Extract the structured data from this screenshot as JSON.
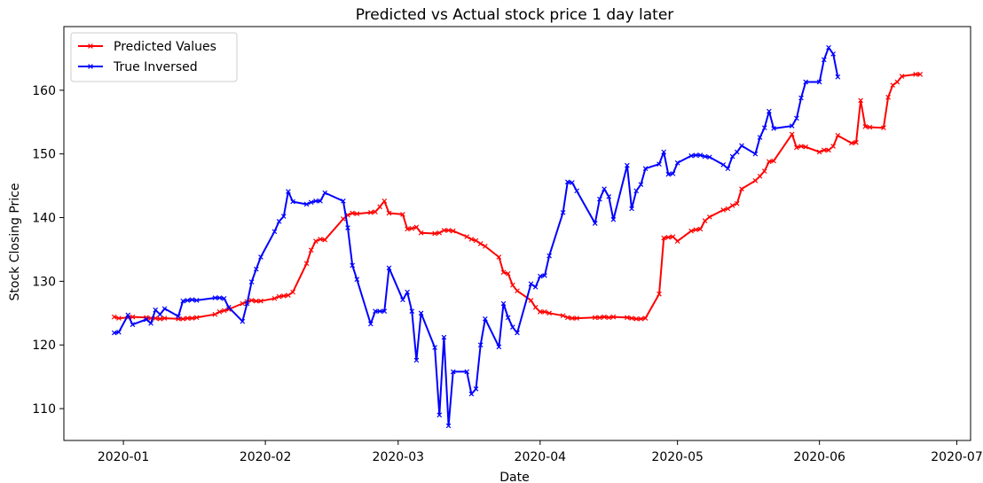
{
  "chart_data": {
    "type": "line",
    "title": "Predicted vs Actual stock price 1 day later",
    "xlabel": "Date",
    "ylabel": "Stock Closing Price",
    "xlim": [
      "2019-12-19",
      "2020-07-04"
    ],
    "ylim": [
      105,
      170
    ],
    "x_ticks": [
      "2020-01",
      "2020-02",
      "2020-03",
      "2020-04",
      "2020-05",
      "2020-06",
      "2020-07"
    ],
    "x_tick_dates": [
      "2020-01-01",
      "2020-02-01",
      "2020-03-01",
      "2020-04-01",
      "2020-05-01",
      "2020-06-01",
      "2020-07-01"
    ],
    "y_ticks": [
      110,
      120,
      130,
      140,
      150,
      160
    ],
    "grid": false,
    "legend_position": "top-left",
    "series": [
      {
        "name": "Predicted Values",
        "color": "#ff0000",
        "marker": "x",
        "points": [
          [
            "2019-12-30",
            124.4
          ],
          [
            "2019-12-31",
            124.2
          ],
          [
            "2020-01-02",
            124.3
          ],
          [
            "2020-01-03",
            124.4
          ],
          [
            "2020-01-06",
            124.3
          ],
          [
            "2020-01-07",
            124.2
          ],
          [
            "2020-01-08",
            124.2
          ],
          [
            "2020-01-09",
            124.1
          ],
          [
            "2020-01-10",
            124.2
          ],
          [
            "2020-01-13",
            124.1
          ],
          [
            "2020-01-14",
            124.1
          ],
          [
            "2020-01-15",
            124.2
          ],
          [
            "2020-01-16",
            124.2
          ],
          [
            "2020-01-17",
            124.3
          ],
          [
            "2020-01-21",
            124.8
          ],
          [
            "2020-01-22",
            125.2
          ],
          [
            "2020-01-23",
            125.4
          ],
          [
            "2020-01-24",
            125.6
          ],
          [
            "2020-01-27",
            126.5
          ],
          [
            "2020-01-28",
            126.8
          ],
          [
            "2020-01-29",
            127.0
          ],
          [
            "2020-01-30",
            126.9
          ],
          [
            "2020-01-31",
            126.9
          ],
          [
            "2020-02-03",
            127.3
          ],
          [
            "2020-02-04",
            127.6
          ],
          [
            "2020-02-05",
            127.7
          ],
          [
            "2020-02-06",
            127.8
          ],
          [
            "2020-02-07",
            128.3
          ],
          [
            "2020-02-10",
            132.8
          ],
          [
            "2020-02-11",
            134.9
          ],
          [
            "2020-02-12",
            136.3
          ],
          [
            "2020-02-13",
            136.6
          ],
          [
            "2020-02-14",
            136.5
          ],
          [
            "2020-02-18",
            139.8
          ],
          [
            "2020-02-19",
            140.4
          ],
          [
            "2020-02-20",
            140.7
          ],
          [
            "2020-02-21",
            140.6
          ],
          [
            "2020-02-24",
            140.8
          ],
          [
            "2020-02-25",
            140.9
          ],
          [
            "2020-02-26",
            141.7
          ],
          [
            "2020-02-27",
            142.6
          ],
          [
            "2020-02-28",
            140.7
          ],
          [
            "2020-03-02",
            140.5
          ],
          [
            "2020-03-03",
            138.2
          ],
          [
            "2020-03-04",
            138.3
          ],
          [
            "2020-03-05",
            138.5
          ],
          [
            "2020-03-06",
            137.6
          ],
          [
            "2020-03-09",
            137.5
          ],
          [
            "2020-03-10",
            137.6
          ],
          [
            "2020-03-11",
            138.0
          ],
          [
            "2020-03-12",
            138.0
          ],
          [
            "2020-03-13",
            137.9
          ],
          [
            "2020-03-16",
            137.0
          ],
          [
            "2020-03-17",
            136.6
          ],
          [
            "2020-03-18",
            136.4
          ],
          [
            "2020-03-19",
            135.9
          ],
          [
            "2020-03-20",
            135.5
          ],
          [
            "2020-03-23",
            133.8
          ],
          [
            "2020-03-24",
            131.4
          ],
          [
            "2020-03-25",
            131.2
          ],
          [
            "2020-03-26",
            129.4
          ],
          [
            "2020-03-27",
            128.5
          ],
          [
            "2020-03-30",
            127.0
          ],
          [
            "2020-03-31",
            125.9
          ],
          [
            "2020-04-01",
            125.2
          ],
          [
            "2020-04-02",
            125.2
          ],
          [
            "2020-04-03",
            125.0
          ],
          [
            "2020-04-06",
            124.6
          ],
          [
            "2020-04-07",
            124.3
          ],
          [
            "2020-04-08",
            124.2
          ],
          [
            "2020-04-09",
            124.2
          ],
          [
            "2020-04-13",
            124.3
          ],
          [
            "2020-04-14",
            124.3
          ],
          [
            "2020-04-15",
            124.4
          ],
          [
            "2020-04-16",
            124.3
          ],
          [
            "2020-04-17",
            124.4
          ],
          [
            "2020-04-20",
            124.3
          ],
          [
            "2020-04-21",
            124.2
          ],
          [
            "2020-04-22",
            124.1
          ],
          [
            "2020-04-23",
            124.1
          ],
          [
            "2020-04-24",
            124.2
          ],
          [
            "2020-04-27",
            128.0
          ],
          [
            "2020-04-28",
            136.8
          ],
          [
            "2020-04-29",
            136.9
          ],
          [
            "2020-04-30",
            137.0
          ],
          [
            "2020-05-01",
            136.3
          ],
          [
            "2020-05-04",
            137.9
          ],
          [
            "2020-05-05",
            138.1
          ],
          [
            "2020-05-06",
            138.2
          ],
          [
            "2020-05-07",
            139.5
          ],
          [
            "2020-05-08",
            140.1
          ],
          [
            "2020-05-11",
            141.2
          ],
          [
            "2020-05-12",
            141.4
          ],
          [
            "2020-05-13",
            141.9
          ],
          [
            "2020-05-14",
            142.2
          ],
          [
            "2020-05-15",
            144.5
          ],
          [
            "2020-05-18",
            145.8
          ],
          [
            "2020-05-19",
            146.5
          ],
          [
            "2020-05-20",
            147.3
          ],
          [
            "2020-05-21",
            148.8
          ],
          [
            "2020-05-22",
            148.9
          ],
          [
            "2020-05-26",
            153.1
          ],
          [
            "2020-05-27",
            151.0
          ],
          [
            "2020-05-28",
            151.2
          ],
          [
            "2020-05-29",
            151.1
          ],
          [
            "2020-06-01",
            150.3
          ],
          [
            "2020-06-02",
            150.6
          ],
          [
            "2020-06-03",
            150.6
          ],
          [
            "2020-06-04",
            151.2
          ],
          [
            "2020-06-05",
            152.9
          ],
          [
            "2020-06-08",
            151.7
          ],
          [
            "2020-06-09",
            151.8
          ],
          [
            "2020-06-10",
            158.4
          ],
          [
            "2020-06-11",
            154.3
          ],
          [
            "2020-06-12",
            154.2
          ],
          [
            "2020-06-15",
            154.1
          ],
          [
            "2020-06-16",
            158.9
          ],
          [
            "2020-06-17",
            160.8
          ],
          [
            "2020-06-18",
            161.3
          ],
          [
            "2020-06-19",
            162.2
          ],
          [
            "2020-06-22",
            162.5
          ],
          [
            "2020-06-23",
            162.5
          ]
        ]
      },
      {
        "name": "True Inversed",
        "color": "#0000ff",
        "marker": "x",
        "points": [
          [
            "2019-12-30",
            121.9
          ],
          [
            "2019-12-31",
            122.0
          ],
          [
            "2020-01-02",
            124.7
          ],
          [
            "2020-01-03",
            123.2
          ],
          [
            "2020-01-06",
            124.0
          ],
          [
            "2020-01-07",
            123.4
          ],
          [
            "2020-01-08",
            125.5
          ],
          [
            "2020-01-09",
            124.8
          ],
          [
            "2020-01-10",
            125.7
          ],
          [
            "2020-01-13",
            124.5
          ],
          [
            "2020-01-14",
            126.9
          ],
          [
            "2020-01-15",
            127.0
          ],
          [
            "2020-01-16",
            127.1
          ],
          [
            "2020-01-17",
            127.0
          ],
          [
            "2020-01-21",
            127.4
          ],
          [
            "2020-01-22",
            127.4
          ],
          [
            "2020-01-23",
            127.3
          ],
          [
            "2020-01-24",
            125.9
          ],
          [
            "2020-01-27",
            123.7
          ],
          [
            "2020-01-28",
            126.5
          ],
          [
            "2020-01-29",
            129.9
          ],
          [
            "2020-01-30",
            131.9
          ],
          [
            "2020-01-31",
            133.8
          ],
          [
            "2020-02-03",
            137.8
          ],
          [
            "2020-02-04",
            139.4
          ],
          [
            "2020-02-05",
            140.2
          ],
          [
            "2020-02-06",
            144.1
          ],
          [
            "2020-02-07",
            142.5
          ],
          [
            "2020-02-10",
            142.1
          ],
          [
            "2020-02-11",
            142.4
          ],
          [
            "2020-02-12",
            142.6
          ],
          [
            "2020-02-13",
            142.6
          ],
          [
            "2020-02-14",
            143.9
          ],
          [
            "2020-02-18",
            142.6
          ],
          [
            "2020-02-19",
            138.4
          ],
          [
            "2020-02-20",
            132.5
          ],
          [
            "2020-02-21",
            130.3
          ],
          [
            "2020-02-24",
            123.3
          ],
          [
            "2020-02-25",
            125.3
          ],
          [
            "2020-02-26",
            125.3
          ],
          [
            "2020-02-27",
            125.3
          ],
          [
            "2020-02-28",
            132.1
          ],
          [
            "2020-03-02",
            127.1
          ],
          [
            "2020-03-03",
            128.3
          ],
          [
            "2020-03-04",
            125.3
          ],
          [
            "2020-03-05",
            117.6
          ],
          [
            "2020-03-06",
            125.0
          ],
          [
            "2020-03-09",
            119.6
          ],
          [
            "2020-03-10",
            109.0
          ],
          [
            "2020-03-11",
            121.2
          ],
          [
            "2020-03-12",
            107.3
          ],
          [
            "2020-03-13",
            115.8
          ],
          [
            "2020-03-16",
            115.8
          ],
          [
            "2020-03-17",
            112.3
          ],
          [
            "2020-03-18",
            113.1
          ],
          [
            "2020-03-19",
            120.0
          ],
          [
            "2020-03-20",
            124.1
          ],
          [
            "2020-03-23",
            119.7
          ],
          [
            "2020-03-24",
            126.5
          ],
          [
            "2020-03-25",
            124.3
          ],
          [
            "2020-03-26",
            122.8
          ],
          [
            "2020-03-27",
            121.9
          ],
          [
            "2020-03-30",
            129.6
          ],
          [
            "2020-03-31",
            129.1
          ],
          [
            "2020-04-01",
            130.8
          ],
          [
            "2020-04-02",
            130.9
          ],
          [
            "2020-04-03",
            134.0
          ],
          [
            "2020-04-06",
            140.8
          ],
          [
            "2020-04-07",
            145.6
          ],
          [
            "2020-04-08",
            145.5
          ],
          [
            "2020-04-09",
            144.2
          ],
          [
            "2020-04-13",
            139.1
          ],
          [
            "2020-04-14",
            142.9
          ],
          [
            "2020-04-15",
            144.5
          ],
          [
            "2020-04-16",
            143.3
          ],
          [
            "2020-04-17",
            139.7
          ],
          [
            "2020-04-20",
            148.2
          ],
          [
            "2020-04-21",
            141.4
          ],
          [
            "2020-04-22",
            144.2
          ],
          [
            "2020-04-23",
            145.2
          ],
          [
            "2020-04-24",
            147.7
          ],
          [
            "2020-04-27",
            148.4
          ],
          [
            "2020-04-28",
            150.3
          ],
          [
            "2020-04-29",
            146.8
          ],
          [
            "2020-04-30",
            146.9
          ],
          [
            "2020-05-01",
            148.6
          ],
          [
            "2020-05-04",
            149.7
          ],
          [
            "2020-05-05",
            149.8
          ],
          [
            "2020-05-06",
            149.8
          ],
          [
            "2020-05-07",
            149.6
          ],
          [
            "2020-05-08",
            149.5
          ],
          [
            "2020-05-11",
            148.3
          ],
          [
            "2020-05-12",
            147.7
          ],
          [
            "2020-05-13",
            149.6
          ],
          [
            "2020-05-14",
            150.3
          ],
          [
            "2020-05-15",
            151.3
          ],
          [
            "2020-05-18",
            150.0
          ],
          [
            "2020-05-19",
            152.6
          ],
          [
            "2020-05-20",
            154.1
          ],
          [
            "2020-05-21",
            156.7
          ],
          [
            "2020-05-22",
            154.0
          ],
          [
            "2020-05-26",
            154.4
          ],
          [
            "2020-05-27",
            155.6
          ],
          [
            "2020-05-28",
            158.8
          ],
          [
            "2020-05-29",
            161.3
          ],
          [
            "2020-06-01",
            161.3
          ],
          [
            "2020-06-02",
            164.8
          ],
          [
            "2020-06-03",
            166.7
          ],
          [
            "2020-06-04",
            165.7
          ],
          [
            "2020-06-05",
            162.1
          ]
        ]
      }
    ]
  }
}
